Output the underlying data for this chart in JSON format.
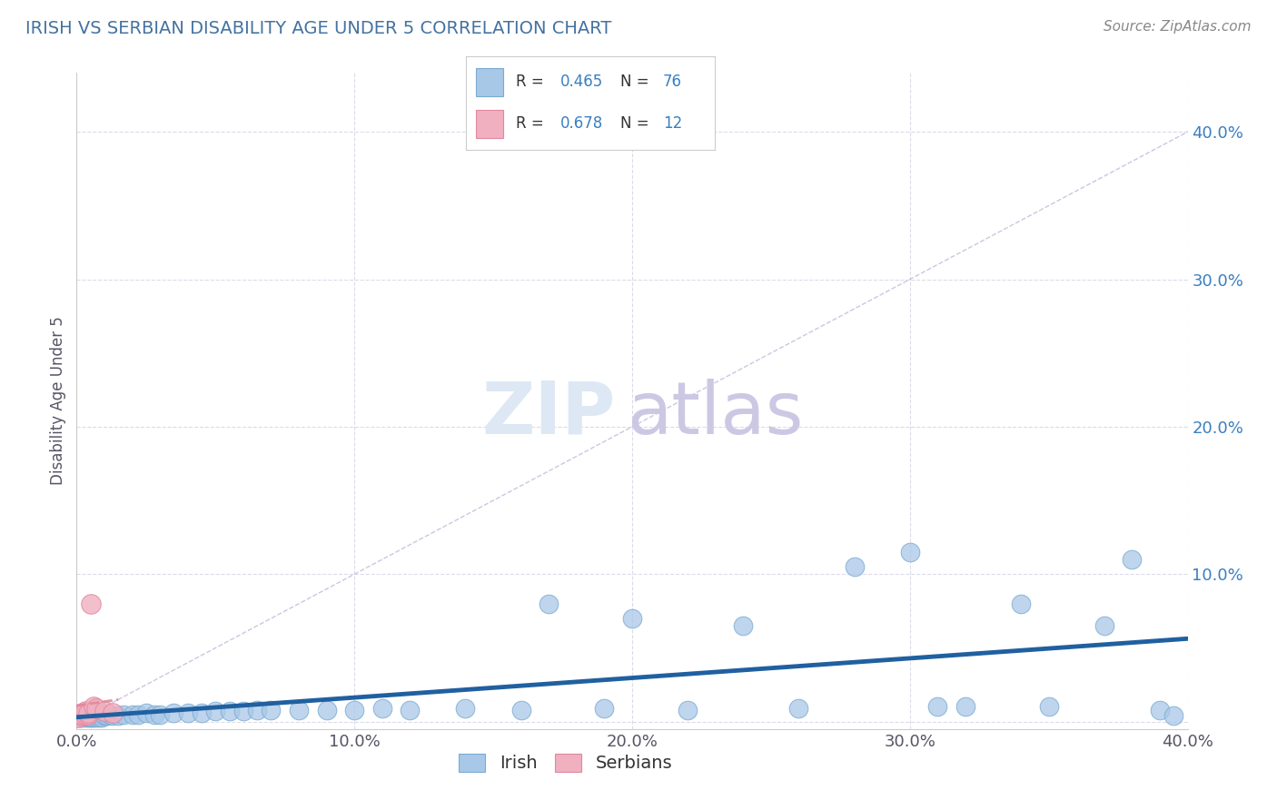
{
  "title": "IRISH VS SERBIAN DISABILITY AGE UNDER 5 CORRELATION CHART",
  "source": "Source: ZipAtlas.com",
  "ylabel": "Disability Age Under 5",
  "irish_R": 0.465,
  "irish_N": 76,
  "serbian_R": 0.678,
  "serbian_N": 12,
  "irish_color": "#a8c8e8",
  "irish_edge_color": "#7aaad0",
  "serbian_color": "#f0b0c0",
  "serbian_edge_color": "#e088a0",
  "irish_line_color": "#2060a0",
  "serbian_line_color": "#e08898",
  "ref_line_color": "#c0b8d8",
  "background_color": "#ffffff",
  "title_color": "#4472a0",
  "source_color": "#888888",
  "stat_color": "#3a7fc1",
  "grid_color": "#d8d8e8",
  "x_range": [
    0.0,
    0.4
  ],
  "y_range": [
    -0.005,
    0.44
  ],
  "irish_x": [
    0.001,
    0.001,
    0.002,
    0.002,
    0.002,
    0.002,
    0.002,
    0.003,
    0.003,
    0.003,
    0.003,
    0.004,
    0.004,
    0.004,
    0.004,
    0.005,
    0.005,
    0.005,
    0.005,
    0.005,
    0.006,
    0.006,
    0.006,
    0.006,
    0.007,
    0.007,
    0.007,
    0.008,
    0.008,
    0.008,
    0.009,
    0.009,
    0.009,
    0.01,
    0.01,
    0.011,
    0.012,
    0.013,
    0.015,
    0.017,
    0.02,
    0.022,
    0.025,
    0.028,
    0.03,
    0.035,
    0.04,
    0.045,
    0.05,
    0.055,
    0.06,
    0.065,
    0.07,
    0.08,
    0.09,
    0.1,
    0.11,
    0.12,
    0.14,
    0.16,
    0.17,
    0.19,
    0.2,
    0.22,
    0.24,
    0.26,
    0.28,
    0.3,
    0.31,
    0.32,
    0.34,
    0.35,
    0.37,
    0.38,
    0.39,
    0.395
  ],
  "irish_y": [
    0.003,
    0.005,
    0.004,
    0.005,
    0.006,
    0.003,
    0.004,
    0.005,
    0.003,
    0.004,
    0.006,
    0.003,
    0.005,
    0.004,
    0.006,
    0.003,
    0.004,
    0.005,
    0.003,
    0.006,
    0.004,
    0.005,
    0.003,
    0.006,
    0.004,
    0.003,
    0.005,
    0.004,
    0.006,
    0.003,
    0.005,
    0.004,
    0.003,
    0.005,
    0.004,
    0.004,
    0.005,
    0.004,
    0.004,
    0.005,
    0.005,
    0.005,
    0.006,
    0.005,
    0.005,
    0.006,
    0.006,
    0.006,
    0.007,
    0.007,
    0.007,
    0.008,
    0.008,
    0.008,
    0.008,
    0.008,
    0.009,
    0.008,
    0.009,
    0.008,
    0.08,
    0.009,
    0.07,
    0.008,
    0.065,
    0.009,
    0.105,
    0.115,
    0.01,
    0.01,
    0.08,
    0.01,
    0.065,
    0.11,
    0.008,
    0.004
  ],
  "serbian_x": [
    0.001,
    0.002,
    0.002,
    0.003,
    0.003,
    0.004,
    0.004,
    0.005,
    0.006,
    0.007,
    0.01,
    0.013
  ],
  "serbian_y": [
    0.003,
    0.004,
    0.005,
    0.005,
    0.007,
    0.005,
    0.006,
    0.08,
    0.01,
    0.009,
    0.007,
    0.006
  ]
}
